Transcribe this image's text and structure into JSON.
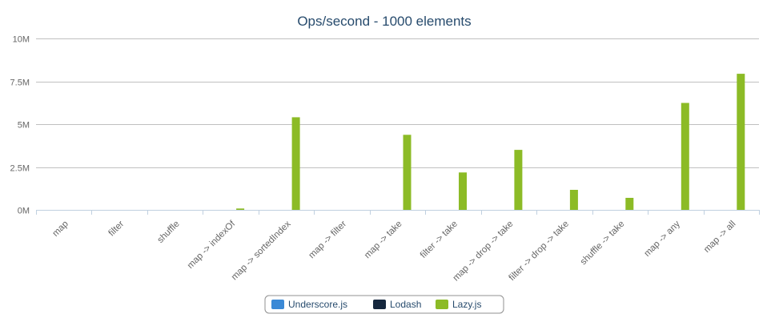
{
  "chart_data": {
    "type": "bar",
    "title": "Ops/second - 1000 elements",
    "xlabel": "",
    "ylabel": "",
    "ylim": [
      0,
      10000000
    ],
    "yticks": [
      0,
      2500000,
      5000000,
      7500000,
      10000000
    ],
    "ytick_labels": [
      "0M",
      "2.5M",
      "5M",
      "7.5M",
      "10M"
    ],
    "grid": true,
    "legend_position": "bottom-center",
    "categories": [
      "map",
      "filter",
      "shuffle",
      "map -> indexOf",
      "map -> sortedIndex",
      "map -> filter",
      "map -> take",
      "filter -> take",
      "map -> drop -> take",
      "filter -> drop -> take",
      "shuffle -> take",
      "map -> any",
      "map -> all"
    ],
    "series": [
      {
        "name": "Underscore.js",
        "color": "#3a89d6",
        "values": [
          2000,
          2000,
          2000,
          2000,
          2000,
          2000,
          2000,
          2000,
          2000,
          2000,
          2000,
          2000,
          2000
        ]
      },
      {
        "name": "Lodash",
        "color": "#15273d",
        "values": [
          2000,
          2000,
          2000,
          2000,
          2000,
          2000,
          2000,
          2000,
          2000,
          2000,
          2000,
          2000,
          2000
        ]
      },
      {
        "name": "Lazy.js",
        "color": "#8cbb26",
        "values": [
          2000,
          2000,
          2000,
          80000,
          5400000,
          2000,
          4380000,
          2180000,
          3500000,
          1170000,
          700000,
          6240000,
          7940000
        ]
      }
    ]
  }
}
